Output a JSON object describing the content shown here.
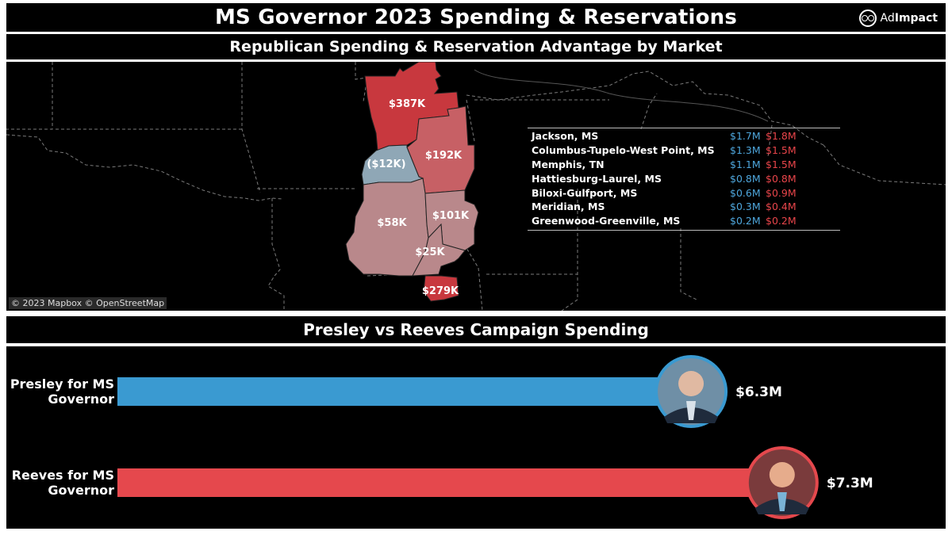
{
  "header": {
    "title": "MS Governor 2023 Spending & Reservations",
    "logo_text_light": "Ad",
    "logo_text_bold": "Impact"
  },
  "map": {
    "title": "Republican Spending & Reservation Advantage by Market",
    "credit": "© 2023 Mapbox © OpenStreetMap",
    "region_labels": [
      "$387K",
      "$192K",
      "($12K)",
      "$58K",
      "$101K",
      "$25K",
      "$279K"
    ],
    "legend": [
      {
        "market": "Jackson, MS",
        "blue": "$1.7M",
        "red": "$1.8M"
      },
      {
        "market": "Columbus-Tupelo-West Point, MS",
        "blue": "$1.3M",
        "red": "$1.5M"
      },
      {
        "market": "Memphis, TN",
        "blue": "$1.1M",
        "red": "$1.5M"
      },
      {
        "market": "Hattiesburg-Laurel, MS",
        "blue": "$0.8M",
        "red": "$0.8M"
      },
      {
        "market": "Biloxi-Gulfport, MS",
        "blue": "$0.6M",
        "red": "$0.9M"
      },
      {
        "market": "Meridian, MS",
        "blue": "$0.3M",
        "red": "$0.4M"
      },
      {
        "market": "Greenwood-Greenville, MS",
        "blue": "$0.2M",
        "red": "$0.2M"
      }
    ],
    "colors": {
      "strong_red": "#c8383e",
      "mid_red": "#c76065",
      "light_red": "#b9888b",
      "blue": "#8fa7b6"
    }
  },
  "chart": {
    "title": "Presley vs Reeves Campaign Spending"
  },
  "chart_data": {
    "type": "bar",
    "orientation": "horizontal",
    "categories": [
      "Presley for MS Governor",
      "Reeves for MS Governor"
    ],
    "category_lines": [
      [
        "Presley for MS",
        "Governor"
      ],
      [
        "Reeves for MS",
        "Governor"
      ]
    ],
    "values": [
      6.3,
      7.3
    ],
    "value_labels": [
      "$6.3M",
      "$7.3M"
    ],
    "unit": "$M",
    "colors": [
      "#3a9ad1",
      "#e5484d"
    ],
    "xlim": [
      0,
      8.8
    ]
  }
}
